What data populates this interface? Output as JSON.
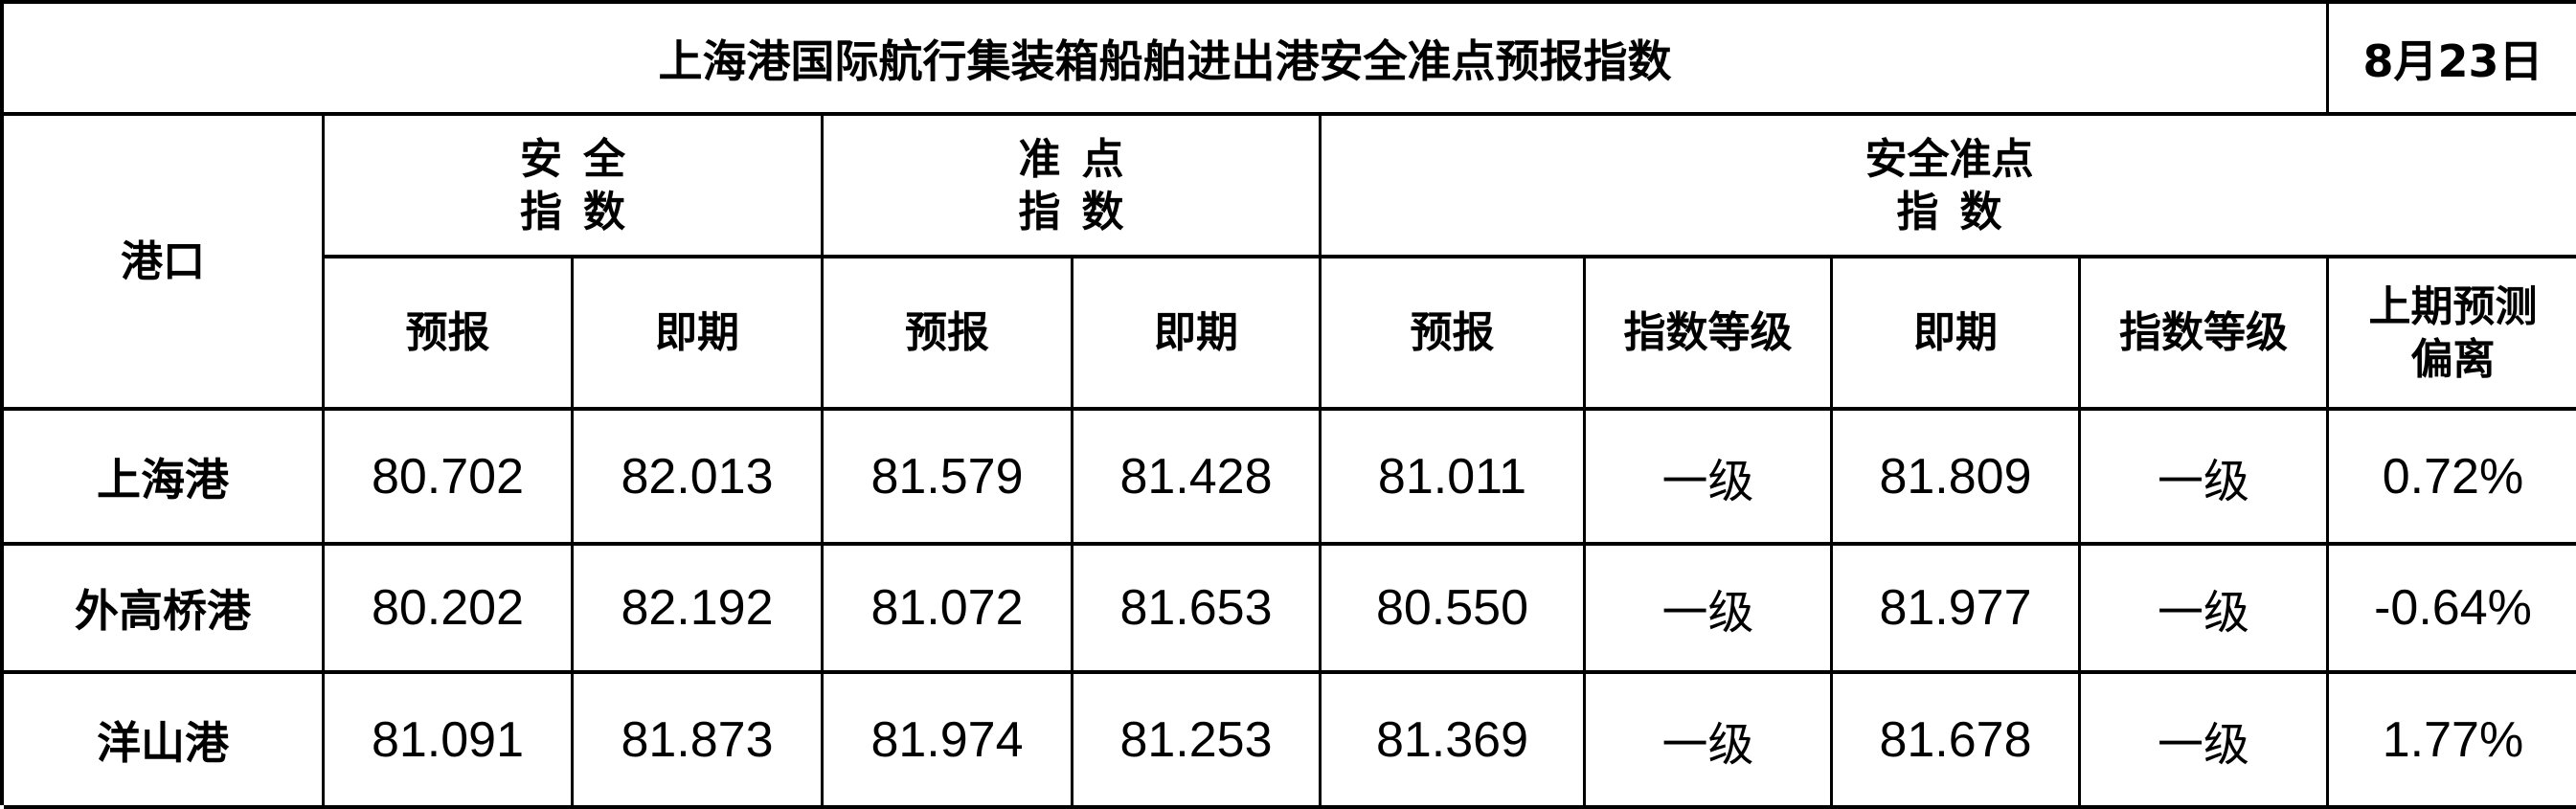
{
  "title": "上海港国际航行集装箱船舶进出港安全准点预报指数",
  "date": "8月23日",
  "headers": {
    "port": "港口",
    "safety_index": [
      "安全",
      "指数"
    ],
    "punctuality_index": [
      "准点",
      "指数"
    ],
    "safety_punctuality_index": [
      "安全准点",
      "指数"
    ],
    "forecast": "预报",
    "current": "即期",
    "grade": "指数等级",
    "last_deviation": [
      "上期预测",
      "偏离"
    ]
  },
  "rows": [
    {
      "port": "上海港",
      "safety_forecast": "80.702",
      "safety_current": "82.013",
      "punct_forecast": "81.579",
      "punct_current": "81.428",
      "sp_forecast": "81.011",
      "sp_forecast_grade": "一级",
      "sp_current": "81.809",
      "sp_current_grade": "一级",
      "deviation": "0.72%"
    },
    {
      "port": "外高桥港",
      "safety_forecast": "80.202",
      "safety_current": "82.192",
      "punct_forecast": "81.072",
      "punct_current": "81.653",
      "sp_forecast": "80.550",
      "sp_forecast_grade": "一级",
      "sp_current": "81.977",
      "sp_current_grade": "一级",
      "deviation": "-0.64%"
    },
    {
      "port": "洋山港",
      "safety_forecast": "81.091",
      "safety_current": "81.873",
      "punct_forecast": "81.974",
      "punct_current": "81.253",
      "sp_forecast": "81.369",
      "sp_forecast_grade": "一级",
      "sp_current": "81.678",
      "sp_current_grade": "一级",
      "deviation": "1.77%"
    }
  ]
}
